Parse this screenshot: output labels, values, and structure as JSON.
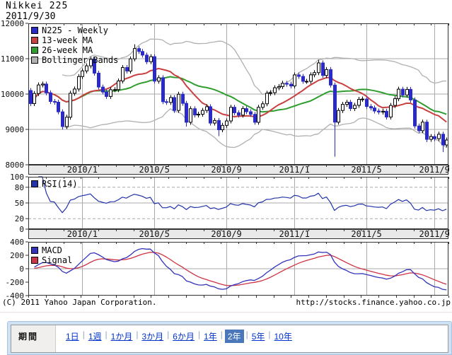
{
  "window": {
    "title": "Nikkei 225",
    "date": "2011/9/30"
  },
  "footer": {
    "copyright": "(C) 2011 Yahoo Japan Corporation.",
    "url": "http://stocks.finance.yahoo.co.jp"
  },
  "period_bar": {
    "label": "期間",
    "separator": "|",
    "options": [
      {
        "label": "1日",
        "selected": false
      },
      {
        "label": "1週",
        "selected": false
      },
      {
        "label": "1か月",
        "selected": false
      },
      {
        "label": "3か月",
        "selected": false
      },
      {
        "label": "6か月",
        "selected": false
      },
      {
        "label": "1年",
        "selected": false
      },
      {
        "label": "2年",
        "selected": true
      },
      {
        "label": "5年",
        "selected": false
      },
      {
        "label": "10年",
        "selected": false
      }
    ]
  },
  "colors": {
    "candle_up": "#ffffff",
    "candle_down": "#2a2ac8",
    "ma13": "#c84040",
    "ma26": "#2f9e2f",
    "bollinger": "#b0b0b0",
    "rsi": "#2233aa",
    "macd": "#3333bb",
    "signal": "#cc3344",
    "grid": "#aaaaaa",
    "band_bg": "#e9e9e9",
    "border": "#333333",
    "text": "#111111"
  },
  "chart_data": {
    "type": "candlestick",
    "symbol": "N225",
    "interval": "Weekly",
    "x_labels": [
      {
        "week": 13,
        "label": "2010/1"
      },
      {
        "week": 31,
        "label": "2010/5"
      },
      {
        "week": 49,
        "label": "2010/9"
      },
      {
        "week": 66,
        "label": "2011/1"
      },
      {
        "week": 84,
        "label": "2011/5"
      },
      {
        "week": 101,
        "label": "2011/9"
      }
    ],
    "main": {
      "ylim": [
        8000,
        12000
      ],
      "y_ticks": [
        12000,
        11000,
        10000,
        9000,
        8000
      ],
      "h_gridlines": [
        11000,
        10000,
        9000
      ],
      "legend": [
        {
          "name": "N225 - Weekly",
          "color": "#2a2ac8"
        },
        {
          "name": "13-week MA",
          "color": "#c84040",
          "window": 13
        },
        {
          "name": "26-week MA",
          "color": "#2f9e2f",
          "window": 26
        },
        {
          "name": "Bollinger Bands",
          "color": "#b0b0b0",
          "window": 26,
          "stddev": 2
        }
      ],
      "candles": [
        [
          10100,
          10170,
          9661,
          9731
        ],
        [
          9731,
          10086,
          9661,
          10016
        ],
        [
          10016,
          10327,
          9946,
          10257
        ],
        [
          10257,
          10353,
          10187,
          10283
        ],
        [
          10283,
          10353,
          9964,
          10034
        ],
        [
          10034,
          10104,
          9720,
          9790
        ],
        [
          9790,
          9860,
          9700,
          9770
        ],
        [
          9770,
          9840,
          9427,
          9497
        ],
        [
          9497,
          9567,
          8995,
          9082
        ],
        [
          9082,
          9416,
          9012,
          9346
        ],
        [
          9346,
          10092,
          9276,
          10022
        ],
        [
          10022,
          10212,
          9952,
          10142
        ],
        [
          10142,
          10565,
          10072,
          10495
        ],
        [
          10495,
          10725,
          10425,
          10655
        ],
        [
          10655,
          10868,
          10585,
          10798
        ],
        [
          10798,
          11052,
          10728,
          10982
        ],
        [
          10982,
          11052,
          10521,
          10591
        ],
        [
          10591,
          10661,
          10128,
          10198
        ],
        [
          10198,
          10268,
          9987,
          10057
        ],
        [
          10057,
          10127,
          9862,
          9932
        ],
        [
          9932,
          10193,
          9862,
          10123
        ],
        [
          10123,
          10196,
          10053,
          10126
        ],
        [
          10126,
          10439,
          10056,
          10369
        ],
        [
          10369,
          10821,
          10299,
          10751
        ],
        [
          10751,
          10821,
          10581,
          10651
        ],
        [
          10651,
          11066,
          10581,
          10996
        ],
        [
          10996,
          11408,
          10926,
          11286
        ],
        [
          11286,
          11356,
          11134,
          11204
        ],
        [
          11204,
          11274,
          11032,
          11102
        ],
        [
          11102,
          11172,
          10844,
          10914
        ],
        [
          10914,
          11127,
          10844,
          11057
        ],
        [
          11057,
          11127,
          10295,
          10365
        ],
        [
          10365,
          10532,
          10295,
          10462
        ],
        [
          10462,
          10532,
          9714,
          9784
        ],
        [
          9784,
          9854,
          9693,
          9763
        ],
        [
          9763,
          9971,
          9693,
          9901
        ],
        [
          9901,
          9971,
          9467,
          9537
        ],
        [
          9537,
          10065,
          9467,
          9995
        ],
        [
          9995,
          10065,
          9667,
          9737
        ],
        [
          9737,
          9807,
          9080,
          9203
        ],
        [
          9203,
          9655,
          9133,
          9585
        ],
        [
          9585,
          9655,
          9338,
          9408
        ],
        [
          9408,
          9500,
          9338,
          9430
        ],
        [
          9430,
          9607,
          9360,
          9537
        ],
        [
          9537,
          9712,
          9467,
          9642
        ],
        [
          9642,
          9712,
          9109,
          9179
        ],
        [
          9179,
          9323,
          9109,
          9253
        ],
        [
          9253,
          9323,
          8810,
          8991
        ],
        [
          8991,
          9184,
          8921,
          9114
        ],
        [
          9114,
          9309,
          9044,
          9239
        ],
        [
          9239,
          9696,
          9169,
          9626
        ],
        [
          9626,
          9696,
          9401,
          9471
        ],
        [
          9471,
          9541,
          9334,
          9404
        ],
        [
          9404,
          9658,
          9334,
          9588
        ],
        [
          9588,
          9658,
          9430,
          9500
        ],
        [
          9500,
          9570,
          9356,
          9426
        ],
        [
          9426,
          9496,
          9132,
          9202
        ],
        [
          9202,
          9695,
          9132,
          9625
        ],
        [
          9625,
          9794,
          9555,
          9724
        ],
        [
          9724,
          10092,
          9654,
          10022
        ],
        [
          10022,
          10109,
          9952,
          10039
        ],
        [
          10039,
          10248,
          9969,
          10178
        ],
        [
          10178,
          10282,
          10108,
          10212
        ],
        [
          10212,
          10374,
          10142,
          10304
        ],
        [
          10304,
          10374,
          10209,
          10279
        ],
        [
          10279,
          10349,
          10159,
          10229
        ],
        [
          10229,
          10611,
          10159,
          10541
        ],
        [
          10541,
          10611,
          10429,
          10499
        ],
        [
          10499,
          10569,
          10290,
          10360
        ],
        [
          10360,
          10430,
          10290,
          10360
        ],
        [
          10360,
          10614,
          10290,
          10544
        ],
        [
          10544,
          10675,
          10474,
          10605
        ],
        [
          10605,
          10964,
          10535,
          10880
        ],
        [
          10880,
          10950,
          10456,
          10526
        ],
        [
          10526,
          10763,
          10456,
          10693
        ],
        [
          10693,
          10763,
          10184,
          10254
        ],
        [
          10254,
          10324,
          8227,
          9206
        ],
        [
          9206,
          9606,
          9136,
          9536
        ],
        [
          9536,
          9778,
          9466,
          9708
        ],
        [
          9708,
          9838,
          9638,
          9768
        ],
        [
          9768,
          9838,
          9521,
          9591
        ],
        [
          9591,
          9752,
          9521,
          9682
        ],
        [
          9682,
          9919,
          9612,
          9849
        ],
        [
          9849,
          9929,
          9779,
          9859
        ],
        [
          9859,
          9929,
          9578,
          9648
        ],
        [
          9648,
          9718,
          9537,
          9607
        ],
        [
          9607,
          9677,
          9451,
          9521
        ],
        [
          9521,
          9591,
          9422,
          9492
        ],
        [
          9492,
          9584,
          9422,
          9514
        ],
        [
          9514,
          9584,
          9281,
          9351
        ],
        [
          9351,
          9748,
          9281,
          9678
        ],
        [
          9678,
          9938,
          9608,
          9868
        ],
        [
          9868,
          10208,
          9798,
          10138
        ],
        [
          10138,
          10208,
          9904,
          9974
        ],
        [
          9974,
          10202,
          9904,
          10132
        ],
        [
          10132,
          10202,
          9763,
          9833
        ],
        [
          9833,
          9903,
          9027,
          9097
        ],
        [
          9097,
          9167,
          8893,
          8963
        ],
        [
          8963,
          9276,
          8893,
          9206
        ],
        [
          9206,
          9276,
          8640,
          8719
        ],
        [
          8719,
          8867,
          8649,
          8797
        ],
        [
          8797,
          8867,
          8668,
          8738
        ],
        [
          8738,
          8934,
          8668,
          8864
        ],
        [
          8864,
          8934,
          8360,
          8560
        ],
        [
          8560,
          8770,
          8490,
          8700
        ]
      ]
    },
    "rsi": {
      "legend": [
        {
          "name": "RSI(14)",
          "color": "#2233aa",
          "window": 14
        }
      ],
      "ylim": [
        0,
        100
      ],
      "y_ticks": [
        100,
        80,
        50,
        20,
        0
      ],
      "dashed_levels": [
        80,
        20
      ],
      "solid_levels": [
        50
      ]
    },
    "macd": {
      "legend": [
        {
          "name": "MACD",
          "color": "#3333bb"
        },
        {
          "name": "Signal",
          "color": "#cc3344"
        }
      ],
      "ylim": [
        -400,
        400
      ],
      "y_ticks": [
        400,
        200,
        0,
        -200,
        -400
      ],
      "solid_levels": [
        0
      ]
    }
  }
}
